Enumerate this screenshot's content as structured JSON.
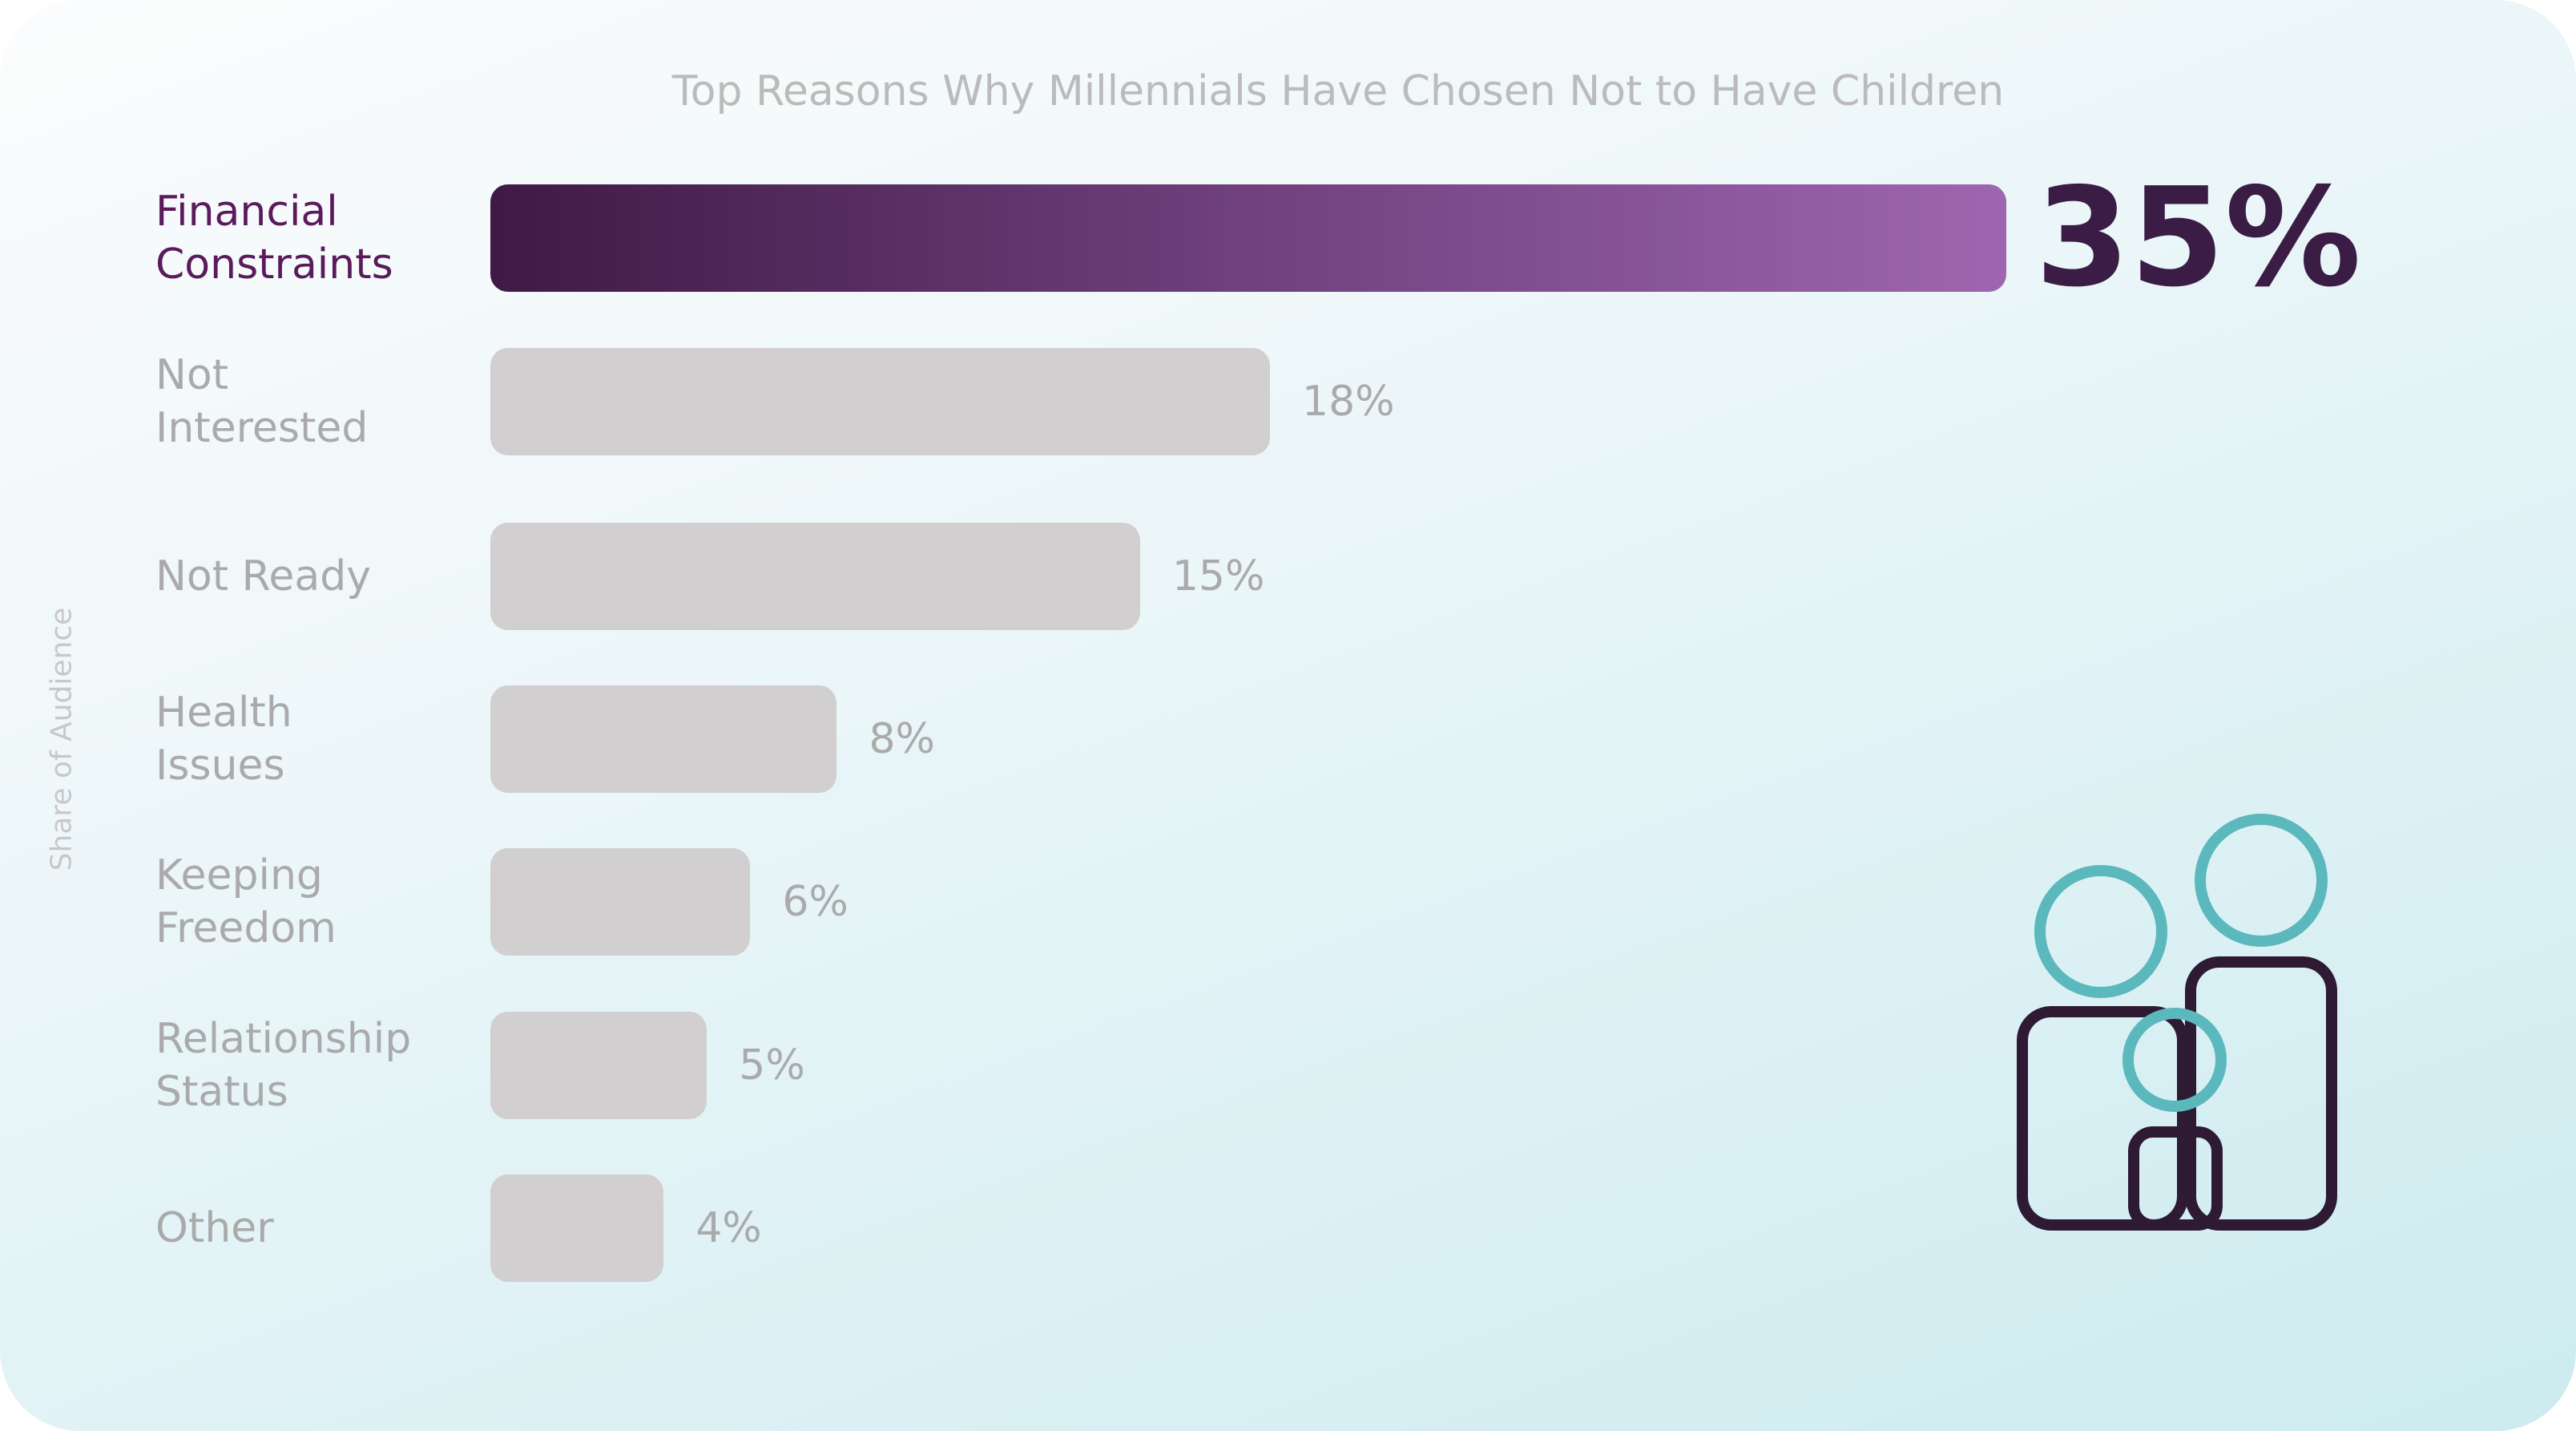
{
  "chart_data": {
    "type": "bar",
    "orientation": "horizontal",
    "title": "Top Reasons Why Millennials Have Chosen Not to Have Children",
    "ylabel": "Share of Audience",
    "xlabel": "",
    "grid": false,
    "legend": "none",
    "xlim": [
      0,
      35
    ],
    "categories": [
      "Financial\nConstraints",
      "Not\nInterested",
      "Not Ready",
      "Health\nIssues",
      "Keeping\nFreedom",
      "Relationship\nStatus",
      "Other"
    ],
    "values": [
      35,
      18,
      15,
      8,
      6,
      5,
      4
    ],
    "value_labels": [
      "35%",
      "18%",
      "15%",
      "8%",
      "6%",
      "5%",
      "4%"
    ],
    "highlight_index": 0,
    "colors": {
      "highlight_start": "#3f1a45",
      "highlight_end": "#9e66b0",
      "bar": "#d1cfd0",
      "highlight_text": "#5a1a5c",
      "muted_text": "#aaaaaa",
      "icon_outline": "#2e1a33",
      "icon_heads": "#5bb8bd"
    }
  },
  "decoration": {
    "icon": "family-icon"
  }
}
